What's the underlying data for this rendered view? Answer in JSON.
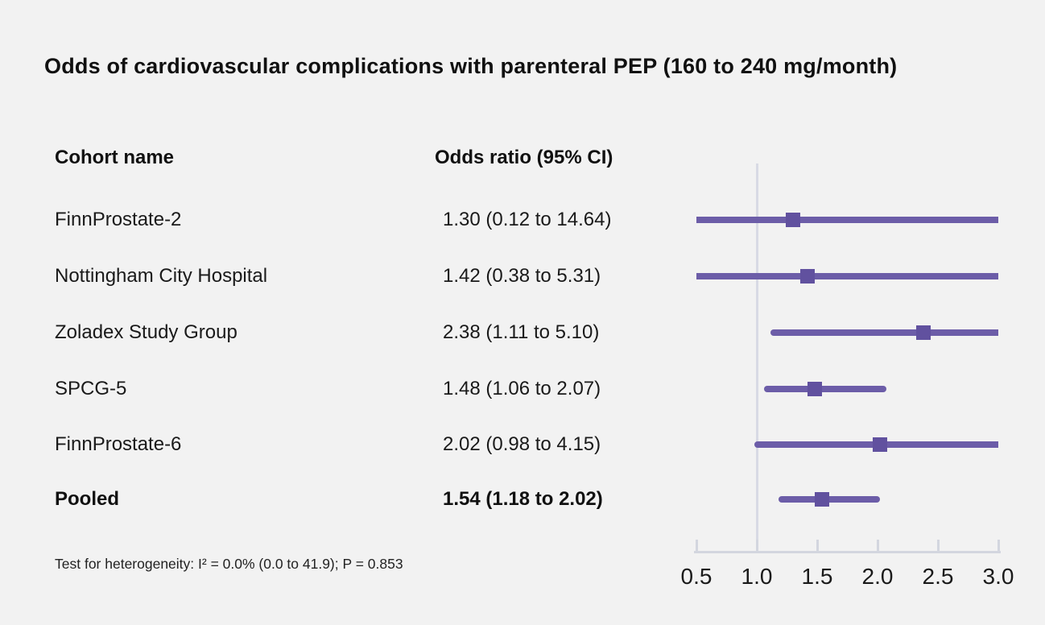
{
  "title": "Odds of cardiovascular complications with parenteral PEP (160 to 240 mg/month)",
  "table": {
    "col1": "Cohort name",
    "col2": "Odds ratio (95% CI)"
  },
  "footnote": "Test for heterogeneity: I² = 0.0% (0.0 to 41.9); P = 0.853",
  "colors": {
    "background": "#f2f2f2",
    "text": "#1a1a1a",
    "ci_line": "#6c5da8",
    "marker": "#61519f",
    "axis": "#d3d6df",
    "reference_line": "#d8dae4"
  },
  "chart_data": {
    "type": "forest",
    "title": "Odds of cardiovascular complications with parenteral PEP (160 to 240 mg/month)",
    "xlabel": "",
    "x_axis": {
      "min": 0.5,
      "max": 3.0,
      "tick_labels": [
        "0.5",
        "1.0",
        "1.5",
        "2.0",
        "2.5",
        "3.0"
      ],
      "tick_values": [
        0.5,
        1.0,
        1.5,
        2.0,
        2.5,
        3.0
      ],
      "reference_value": 1.0,
      "scale": "linear"
    },
    "rows": [
      {
        "label": "FinnProstate-2",
        "or_text": "1.30 (0.12 to 14.64)",
        "estimate": 1.3,
        "ci_low": 0.12,
        "ci_high": 14.64,
        "bold": false
      },
      {
        "label": "Nottingham City Hospital",
        "or_text": "1.42 (0.38 to 5.31)",
        "estimate": 1.42,
        "ci_low": 0.38,
        "ci_high": 5.31,
        "bold": false
      },
      {
        "label": "Zoladex Study Group",
        "or_text": "2.38 (1.11 to 5.10)",
        "estimate": 2.38,
        "ci_low": 1.11,
        "ci_high": 5.1,
        "bold": false
      },
      {
        "label": "SPCG-5",
        "or_text": "1.48 (1.06 to 2.07)",
        "estimate": 1.48,
        "ci_low": 1.06,
        "ci_high": 2.07,
        "bold": false
      },
      {
        "label": "FinnProstate-6",
        "or_text": "2.02 (0.98 to 4.15)",
        "estimate": 2.02,
        "ci_low": 0.98,
        "ci_high": 4.15,
        "bold": false
      },
      {
        "label": "Pooled",
        "or_text": "1.54 (1.18 to 2.02)",
        "estimate": 1.54,
        "ci_low": 1.18,
        "ci_high": 2.02,
        "bold": true
      }
    ]
  }
}
